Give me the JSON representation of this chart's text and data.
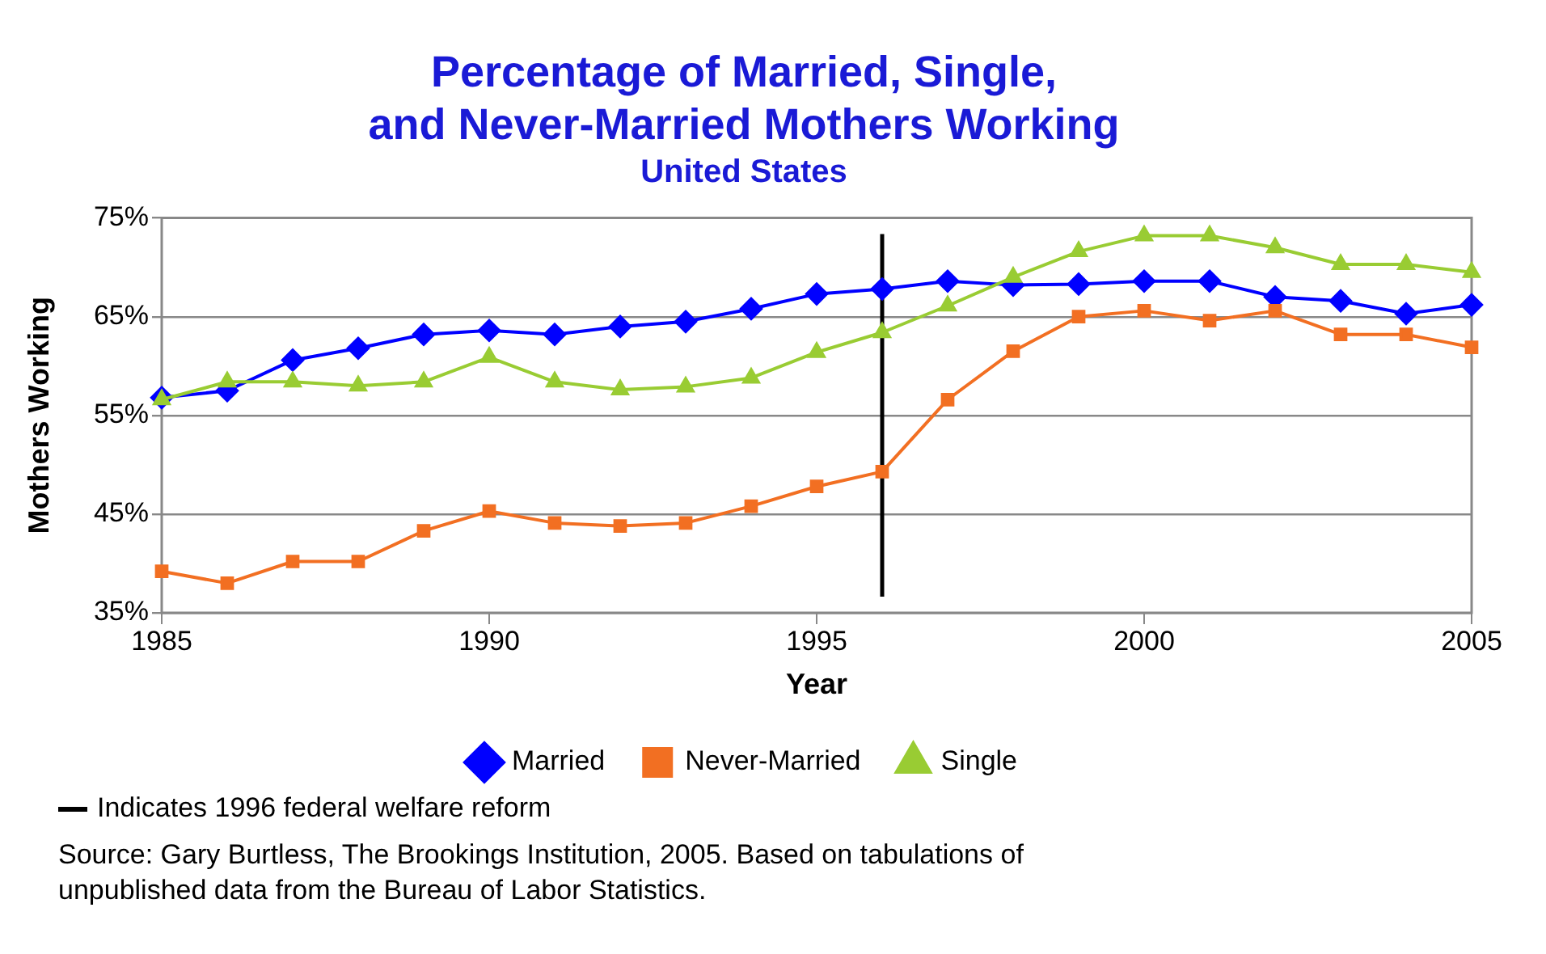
{
  "chart_data": {
    "type": "line",
    "title": [
      "Percentage of Married, Single,",
      "and Never-Married Mothers Working"
    ],
    "subtitle": "United States",
    "xlabel": "Year",
    "ylabel": "Mothers Working",
    "x": [
      1985,
      1986,
      1987,
      1988,
      1989,
      1990,
      1991,
      1992,
      1993,
      1994,
      1995,
      1996,
      1997,
      1998,
      1999,
      2000,
      2001,
      2002,
      2003,
      2004,
      2005
    ],
    "series": [
      {
        "name": "Married",
        "color": "#0000ff",
        "marker": "diamond",
        "values": [
          56.8,
          57.5,
          60.6,
          61.8,
          63.2,
          63.6,
          63.2,
          64.0,
          64.5,
          65.8,
          67.3,
          67.8,
          68.6,
          68.2,
          68.3,
          68.6,
          68.6,
          67.0,
          66.6,
          65.3,
          66.2
        ]
      },
      {
        "name": "Never-Married",
        "color": "#f26f22",
        "marker": "square",
        "values": [
          39.2,
          38.0,
          40.2,
          40.2,
          43.3,
          45.3,
          44.1,
          43.8,
          44.1,
          45.8,
          47.8,
          49.3,
          56.6,
          61.5,
          65.0,
          65.6,
          64.6,
          65.6,
          63.2,
          63.2,
          61.9
        ]
      },
      {
        "name": "Single",
        "color": "#99cc33",
        "marker": "triangle",
        "values": [
          56.6,
          58.4,
          58.4,
          58.0,
          58.4,
          60.9,
          58.4,
          57.6,
          57.9,
          58.8,
          61.4,
          63.4,
          66.1,
          69.0,
          71.6,
          73.2,
          73.2,
          72.0,
          70.3,
          70.3,
          69.5
        ]
      }
    ],
    "xlim": [
      1985,
      2005
    ],
    "xticks": [
      1985,
      1990,
      1995,
      2000,
      2005
    ],
    "ylim": [
      35,
      75
    ],
    "yticks": [
      {
        "value": 35,
        "label": "35%"
      },
      {
        "value": 45,
        "label": "45%"
      },
      {
        "value": 55,
        "label": "55%"
      },
      {
        "value": 65,
        "label": "65%"
      },
      {
        "value": 75,
        "label": "75%"
      }
    ],
    "grid": "y",
    "legend": "bottom",
    "ref_lines": [
      {
        "axis": "x",
        "value": 1996,
        "label": "Indicates 1996 federal welfare reform",
        "color": "#000000"
      }
    ],
    "annotations": [
      "Source:  Gary Burtless, The Brookings Institution, 2005.  Based on tabulations of unpublished data from the Bureau of Labor Statistics."
    ]
  }
}
